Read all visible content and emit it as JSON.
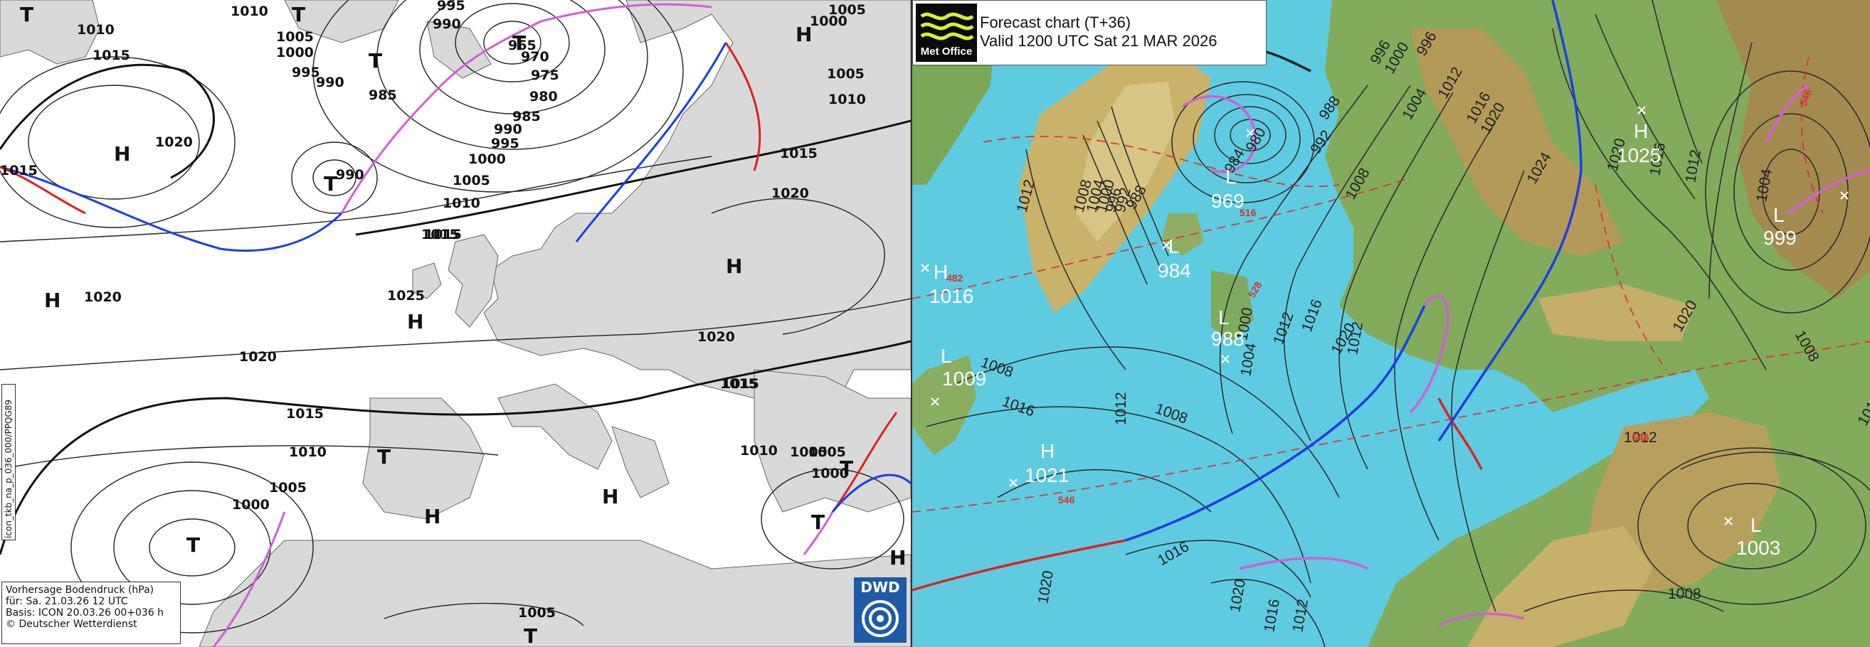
{
  "dwd": {
    "legend": {
      "line1": "Vorhersage Bodendruck (hPa)",
      "line2": "für:  Sa. 21.03.26  12 UTC",
      "line3": "Basis: ICON  20.03.26 00+036 h",
      "line4": "© Deutscher Wetterdienst"
    },
    "side_code": "icon_tkb_na_p_036_000/PPQG89",
    "logo_text": "DWD",
    "isobar_labels": [
      "1010",
      "1010",
      "995",
      "990",
      "1005",
      "1000",
      "995",
      "990",
      "985",
      "1015",
      "1020",
      "965",
      "970",
      "975",
      "980",
      "985",
      "990",
      "995",
      "1000",
      "1005",
      "1010",
      "1015",
      "1020",
      "1025",
      "1020",
      "1020",
      "1015",
      "1015",
      "1010",
      "1005",
      "1000",
      "1005",
      "1010",
      "1005",
      "1000",
      "1005",
      "990",
      "1015",
      "1005",
      "1000",
      "1010",
      "1020",
      "1015",
      "1015",
      "1015",
      "1005"
    ],
    "centers": [
      "T",
      "T",
      "T",
      "T",
      "H",
      "H",
      "H",
      "H",
      "T",
      "H",
      "H",
      "T",
      "T",
      "H",
      "T",
      "H",
      "T",
      "T",
      "H"
    ]
  },
  "metoffice": {
    "title_line1": "Forecast chart (T+36)",
    "title_line2": "Valid 1200 UTC Sat 21 MAR 2026",
    "logo_text": "Met Office",
    "centers": [
      {
        "type": "L",
        "value": "969"
      },
      {
        "type": "L",
        "value": "984"
      },
      {
        "type": "H",
        "value": "1016"
      },
      {
        "type": "L",
        "value": "1009"
      },
      {
        "type": "L",
        "value": "988"
      },
      {
        "type": "H",
        "value": "1021"
      },
      {
        "type": "H",
        "value": "1025"
      },
      {
        "type": "L",
        "value": "999"
      },
      {
        "type": "L",
        "value": "1003"
      }
    ],
    "isobar_labels": [
      "1012",
      "1008",
      "1004",
      "1000",
      "996",
      "992",
      "988",
      "984",
      "980",
      "1000",
      "996",
      "1004",
      "1008",
      "1012",
      "1016",
      "1020",
      "1024",
      "1020",
      "1016",
      "1012",
      "1004",
      "1008",
      "1012",
      "1016",
      "1020",
      "1012",
      "1016",
      "1008",
      "1004",
      "1000",
      "1008",
      "1012",
      "1016",
      "1020",
      "1020",
      "1016",
      "1012",
      "1008",
      "1012",
      "1016",
      "1020",
      "996",
      "992",
      "988"
    ],
    "thickness_labels": [
      "516",
      "528",
      "482",
      "546",
      "546",
      "546"
    ]
  },
  "colors": {
    "sea": "#5fcbe0",
    "land_dwd": "#d9d9d9",
    "warm_front": "#e02020",
    "cold_front": "#1a3fe6",
    "occluded_front": "#d25fd2",
    "thickness": "#d83030",
    "dwd_blue": "#1f5aa6"
  }
}
